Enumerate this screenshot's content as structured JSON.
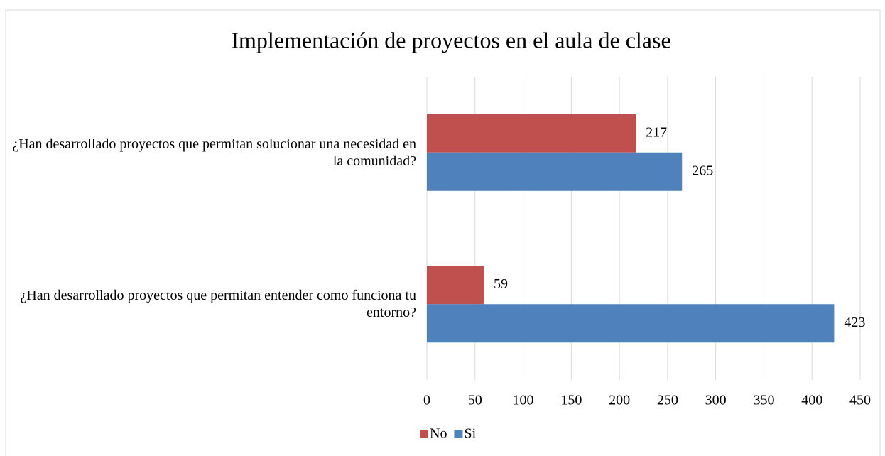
{
  "chart_data": {
    "type": "hbar",
    "title": "Implementación de proyectos en el aula de clase",
    "categories": [
      "¿Han desarrollado proyectos que permitan solucionar una necesidad en la comunidad?",
      "¿Han desarrollado proyectos que permitan entender como funciona tu entorno?"
    ],
    "series": [
      {
        "name": "No",
        "color": "#c0504d",
        "values": [
          217,
          59
        ]
      },
      {
        "name": "Si",
        "color": "#4f81bd",
        "values": [
          265,
          423
        ]
      }
    ],
    "xlim": [
      0,
      450
    ],
    "xticks": [
      0,
      50,
      100,
      150,
      200,
      250,
      300,
      350,
      400,
      450
    ],
    "grid": true,
    "legend": "bottom"
  }
}
